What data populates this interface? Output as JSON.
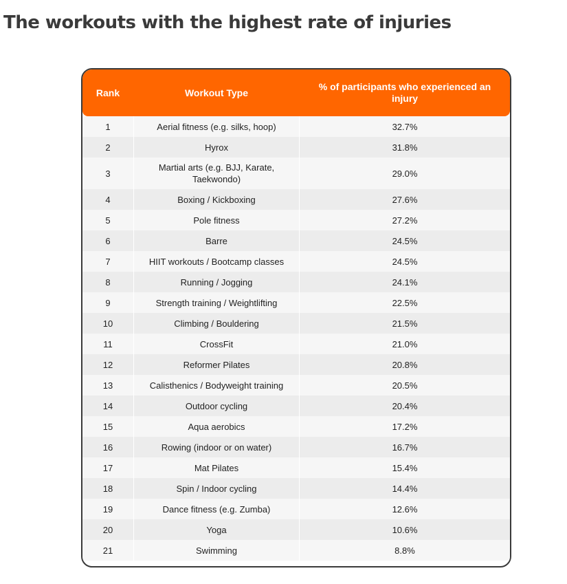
{
  "title": "The workouts with the highest rate of injuries",
  "table": {
    "headers": {
      "rank": "Rank",
      "workout": "Workout Type",
      "percent": "% of participants who experienced an injury"
    },
    "rows": [
      {
        "rank": "1",
        "workout": "Aerial fitness (e.g. silks, hoop)",
        "percent": "32.7%"
      },
      {
        "rank": "2",
        "workout": "Hyrox",
        "percent": "31.8%"
      },
      {
        "rank": "3",
        "workout": "Martial arts (e.g. BJJ, Karate, Taekwondo)",
        "percent": "29.0%"
      },
      {
        "rank": "4",
        "workout": "Boxing / Kickboxing",
        "percent": "27.6%"
      },
      {
        "rank": "5",
        "workout": "Pole fitness",
        "percent": "27.2%"
      },
      {
        "rank": "6",
        "workout": "Barre",
        "percent": "24.5%"
      },
      {
        "rank": "7",
        "workout": "HIIT workouts / Bootcamp classes",
        "percent": "24.5%"
      },
      {
        "rank": "8",
        "workout": "Running / Jogging",
        "percent": "24.1%"
      },
      {
        "rank": "9",
        "workout": "Strength training / Weightlifting",
        "percent": "22.5%"
      },
      {
        "rank": "10",
        "workout": "Climbing / Bouldering",
        "percent": "21.5%"
      },
      {
        "rank": "11",
        "workout": "CrossFit",
        "percent": "21.0%"
      },
      {
        "rank": "12",
        "workout": "Reformer Pilates",
        "percent": "20.8%"
      },
      {
        "rank": "13",
        "workout": "Calisthenics / Bodyweight training",
        "percent": "20.5%"
      },
      {
        "rank": "14",
        "workout": "Outdoor cycling",
        "percent": "20.4%"
      },
      {
        "rank": "15",
        "workout": "Aqua aerobics",
        "percent": "17.2%"
      },
      {
        "rank": "16",
        "workout": "Rowing (indoor or on water)",
        "percent": "16.7%"
      },
      {
        "rank": "17",
        "workout": "Mat Pilates",
        "percent": "15.4%"
      },
      {
        "rank": "18",
        "workout": "Spin / Indoor cycling",
        "percent": "14.4%"
      },
      {
        "rank": "19",
        "workout": "Dance fitness (e.g. Zumba)",
        "percent": "12.6%"
      },
      {
        "rank": "20",
        "workout": "Yoga",
        "percent": "10.6%"
      },
      {
        "rank": "21",
        "workout": "Swimming",
        "percent": "8.8%"
      }
    ]
  },
  "colors": {
    "header_background": "#ff6600",
    "title_text": "#3a3a3a"
  }
}
